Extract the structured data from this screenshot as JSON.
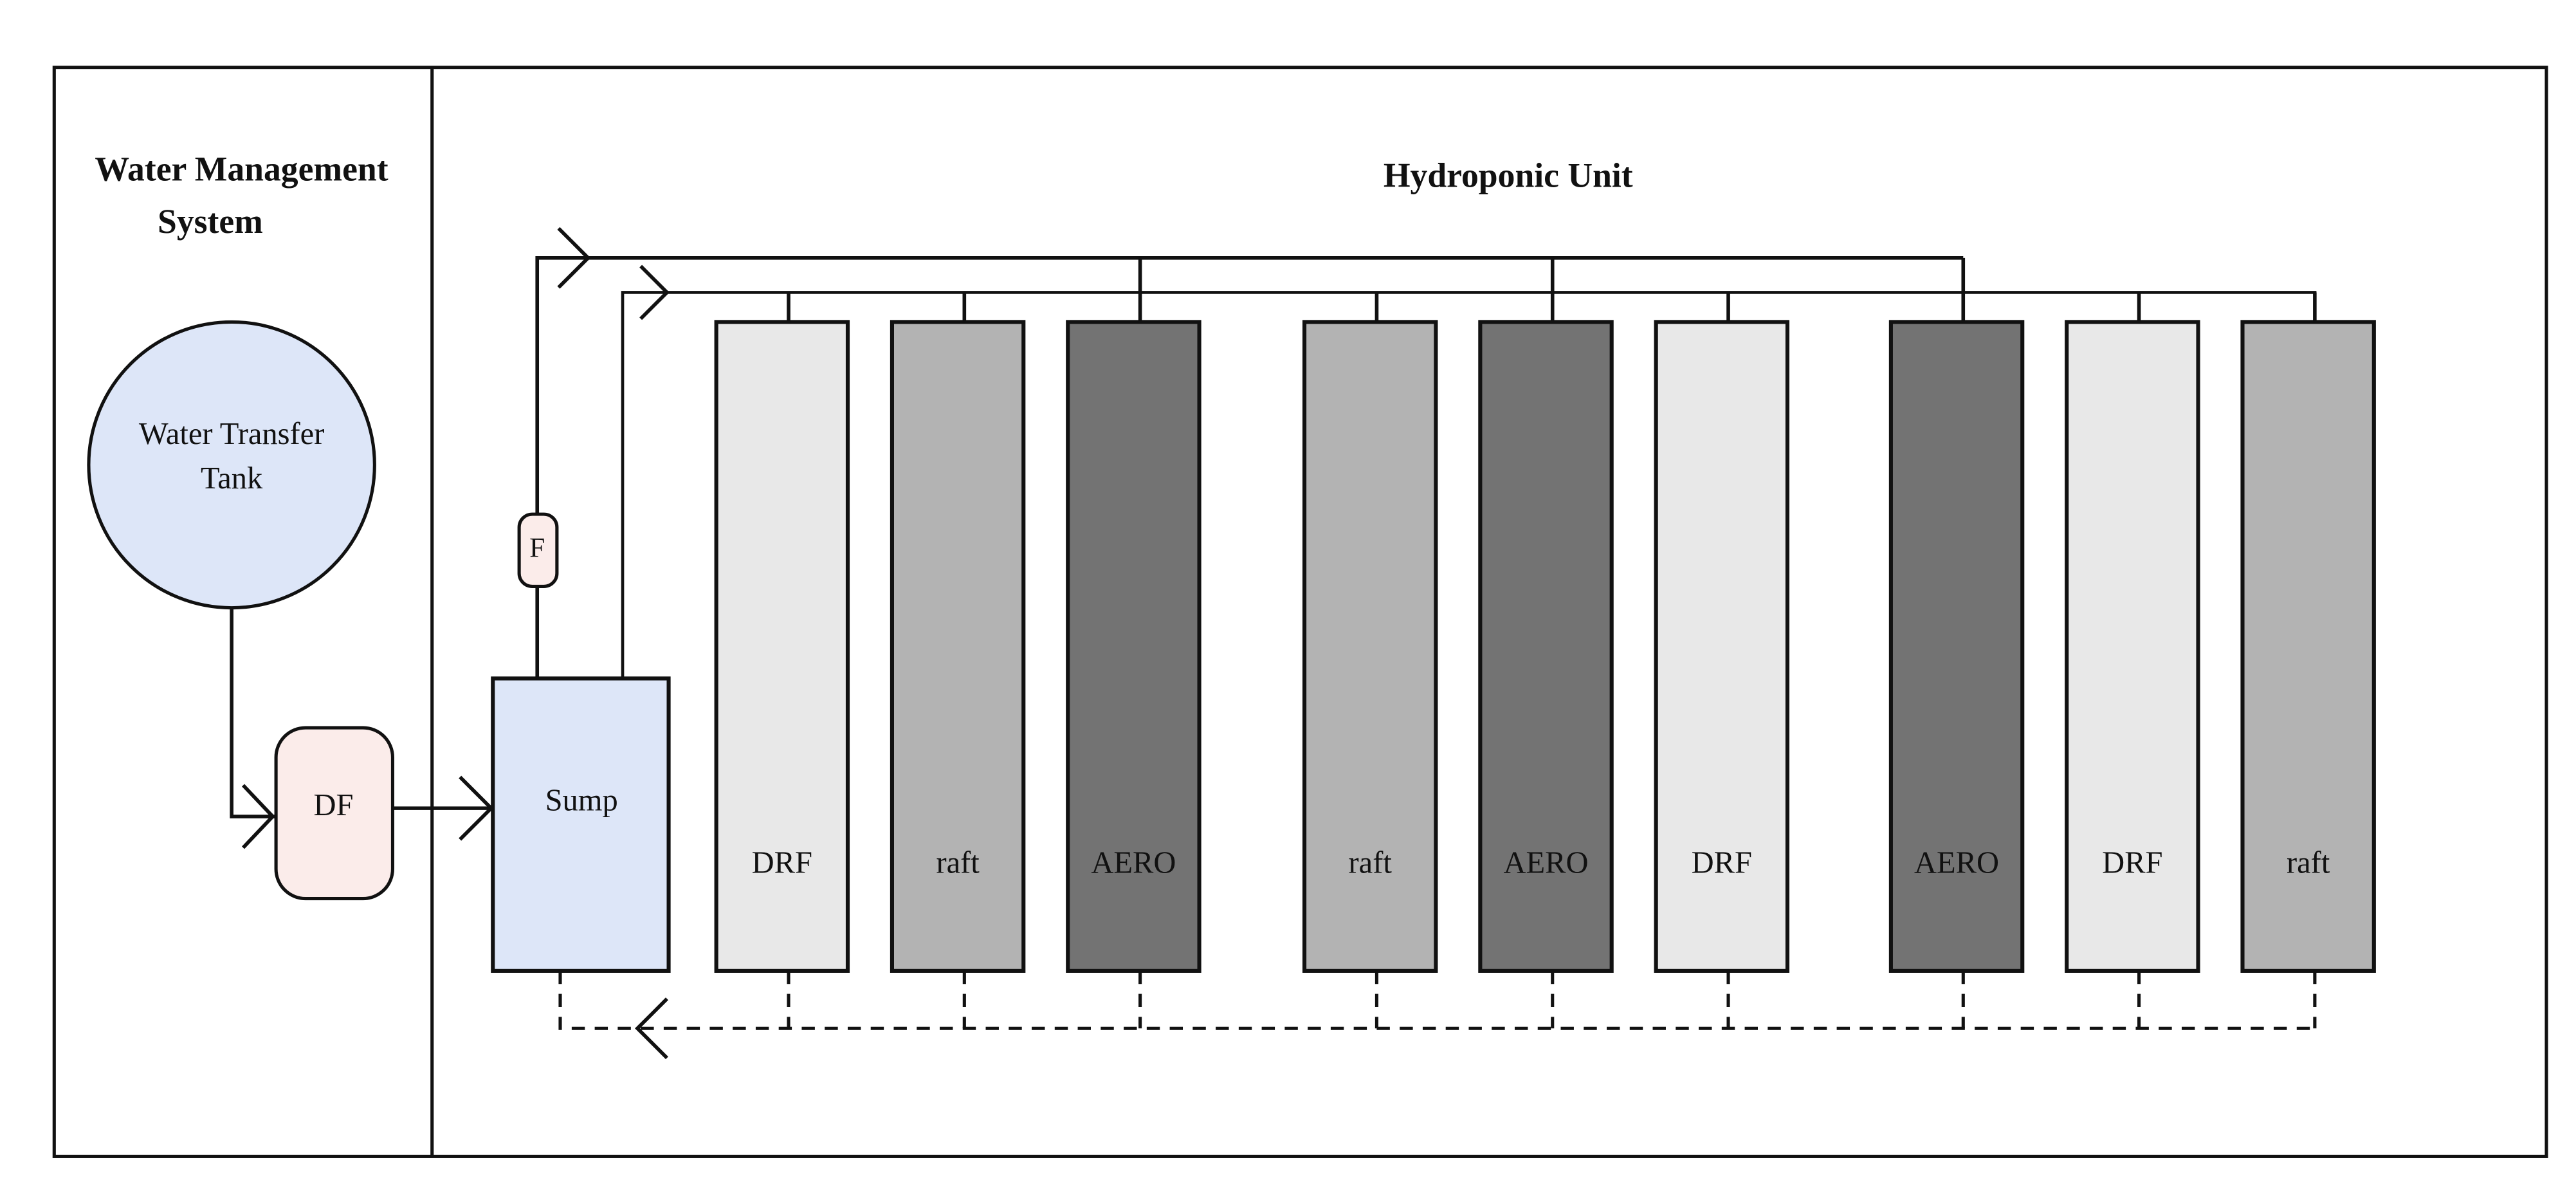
{
  "left": {
    "title_lines": [
      "Water Management",
      "System"
    ],
    "tank_lines": [
      "Water Transfer",
      "Tank"
    ],
    "filter": "DF",
    "sump": "Sump",
    "flow": "F"
  },
  "right": {
    "title": "Hydroponic Unit",
    "beds": [
      {
        "label": "DRF",
        "color": "#e8e8e8"
      },
      {
        "label": "raft",
        "color": "#b3b3b3"
      },
      {
        "label": "AERO",
        "color": "#737373"
      },
      {
        "label": "raft",
        "color": "#b3b3b3"
      },
      {
        "label": "AERO",
        "color": "#737373"
      },
      {
        "label": "DRF",
        "color": "#e8e8e8"
      },
      {
        "label": "AERO",
        "color": "#737373"
      },
      {
        "label": "DRF",
        "color": "#e8e8e8"
      },
      {
        "label": "raft",
        "color": "#b3b3b3"
      }
    ]
  }
}
